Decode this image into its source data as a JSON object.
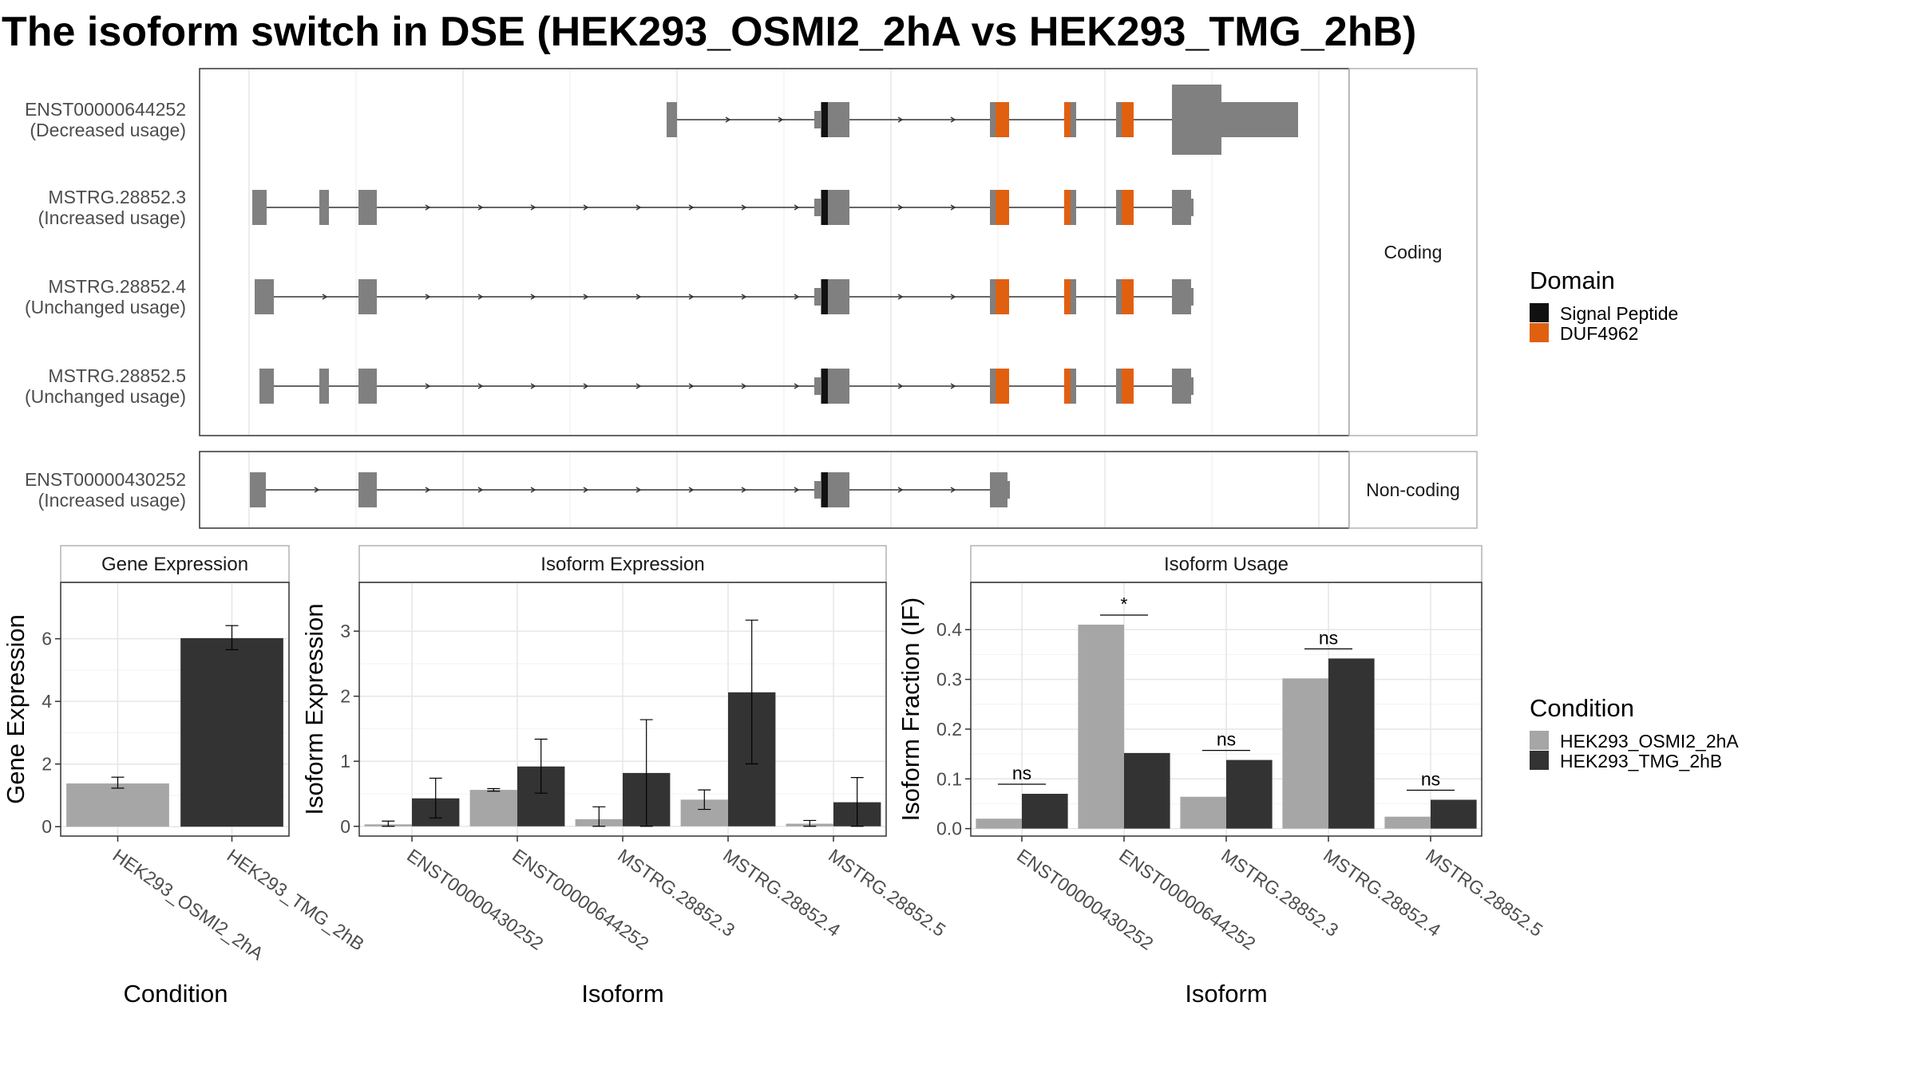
{
  "title": "The isoform switch in DSE (HEK293_OSMI2_2hA vs HEK293_TMG_2hB)",
  "colors": {
    "exon": "#808080",
    "signal_peptide": "#111111",
    "duf": "#e06010",
    "cond_a": "#a6a6a6",
    "cond_b": "#333333"
  },
  "structure": {
    "facets": [
      "Coding",
      "Non-coding"
    ],
    "isoforms": [
      {
        "id": "ENST00000644252",
        "usage": "(Decreased usage)",
        "facet": 0
      },
      {
        "id": "MSTRG.28852.3",
        "usage": "(Increased usage)",
        "facet": 0
      },
      {
        "id": "MSTRG.28852.4",
        "usage": "(Unchanged usage)",
        "facet": 0
      },
      {
        "id": "MSTRG.28852.5",
        "usage": "(Unchanged usage)",
        "facet": 0
      },
      {
        "id": "ENST00000430252",
        "usage": "(Increased usage)",
        "facet": 1
      }
    ]
  },
  "legends": {
    "domain_title": "Domain",
    "domain_items": [
      "Signal Peptide",
      "DUF4962"
    ],
    "condition_title": "Condition",
    "condition_items": [
      "HEK293_OSMI2_2hA",
      "HEK293_TMG_2hB"
    ]
  },
  "chart_data": [
    {
      "type": "bar",
      "panel": "Gene Expression",
      "xlabel": "Condition",
      "ylabel": "Gene Expression",
      "ylim": [
        -0.3,
        7.8
      ],
      "yticks": [
        0,
        2,
        4,
        6
      ],
      "categories": [
        "HEK293_OSMI2_2hA",
        "HEK293_TMG_2hB"
      ],
      "values": [
        1.38,
        6.02
      ],
      "errors": [
        [
          1.23,
          1.58
        ],
        [
          5.65,
          6.42
        ]
      ]
    },
    {
      "type": "bar",
      "panel": "Isoform Expression",
      "xlabel": "Isoform",
      "ylabel": "Isoform Expression",
      "ylim": [
        -0.15,
        3.75
      ],
      "yticks": [
        0,
        1,
        2,
        3
      ],
      "categories": [
        "ENST00000430252",
        "ENST00000644252",
        "MSTRG.28852.3",
        "MSTRG.28852.4",
        "MSTRG.28852.5"
      ],
      "series": [
        {
          "name": "HEK293_OSMI2_2hA",
          "values": [
            0.03,
            0.56,
            0.11,
            0.41,
            0.04
          ],
          "errors": [
            [
              0.0,
              0.08
            ],
            [
              0.54,
              0.58
            ],
            [
              0.0,
              0.3
            ],
            [
              0.26,
              0.56
            ],
            [
              0.0,
              0.09
            ]
          ]
        },
        {
          "name": "HEK293_TMG_2hB",
          "values": [
            0.43,
            0.92,
            0.82,
            2.06,
            0.37
          ],
          "errors": [
            [
              0.13,
              0.74
            ],
            [
              0.51,
              1.34
            ],
            [
              0.0,
              1.64
            ],
            [
              0.96,
              3.17
            ],
            [
              0.0,
              0.75
            ]
          ]
        }
      ]
    },
    {
      "type": "bar",
      "panel": "Isoform Usage",
      "xlabel": "Isoform",
      "ylabel": "Isoform Fraction (IF)",
      "ylim": [
        -0.015,
        0.495
      ],
      "yticks": [
        0.0,
        0.1,
        0.2,
        0.3,
        0.4
      ],
      "ytick_labels": [
        "0.0",
        "0.1",
        "0.2",
        "0.3",
        "0.4"
      ],
      "categories": [
        "ENST00000430252",
        "ENST00000644252",
        "MSTRG.28852.3",
        "MSTRG.28852.4",
        "MSTRG.28852.5"
      ],
      "series": [
        {
          "name": "HEK293_OSMI2_2hA",
          "values": [
            0.02,
            0.41,
            0.064,
            0.302,
            0.024
          ]
        },
        {
          "name": "HEK293_TMG_2hB",
          "values": [
            0.07,
            0.152,
            0.138,
            0.342,
            0.058
          ]
        }
      ],
      "significance": [
        "ns",
        "*",
        "ns",
        "ns",
        "ns"
      ]
    }
  ]
}
